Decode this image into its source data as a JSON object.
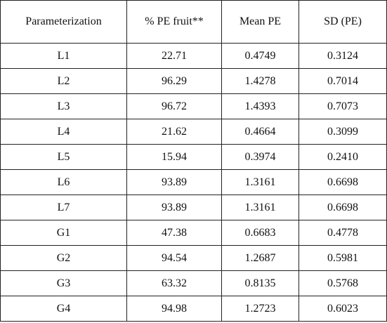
{
  "table": {
    "header": [
      "Parameterization",
      "% PE fruit**",
      "Mean PE",
      "SD (PE)"
    ],
    "rows": [
      [
        "L1",
        "22.71",
        "0.4749",
        "0.3124"
      ],
      [
        "L2",
        "96.29",
        "1.4278",
        "0.7014"
      ],
      [
        "L3",
        "96.72",
        "1.4393",
        "0.7073"
      ],
      [
        "L4",
        "21.62",
        "0.4664",
        "0.3099"
      ],
      [
        "L5",
        "15.94",
        "0.3974",
        "0.2410"
      ],
      [
        "L6",
        "93.89",
        "1.3161",
        "0.6698"
      ],
      [
        "L7",
        "93.89",
        "1.3161",
        "0.6698"
      ],
      [
        "G1",
        "47.38",
        "0.6683",
        "0.4778"
      ],
      [
        "G2",
        "94.54",
        "1.2687",
        "0.5981"
      ],
      [
        "G3",
        "63.32",
        "0.8135",
        "0.5768"
      ],
      [
        "G4",
        "94.98",
        "1.2723",
        "0.6023"
      ]
    ]
  }
}
